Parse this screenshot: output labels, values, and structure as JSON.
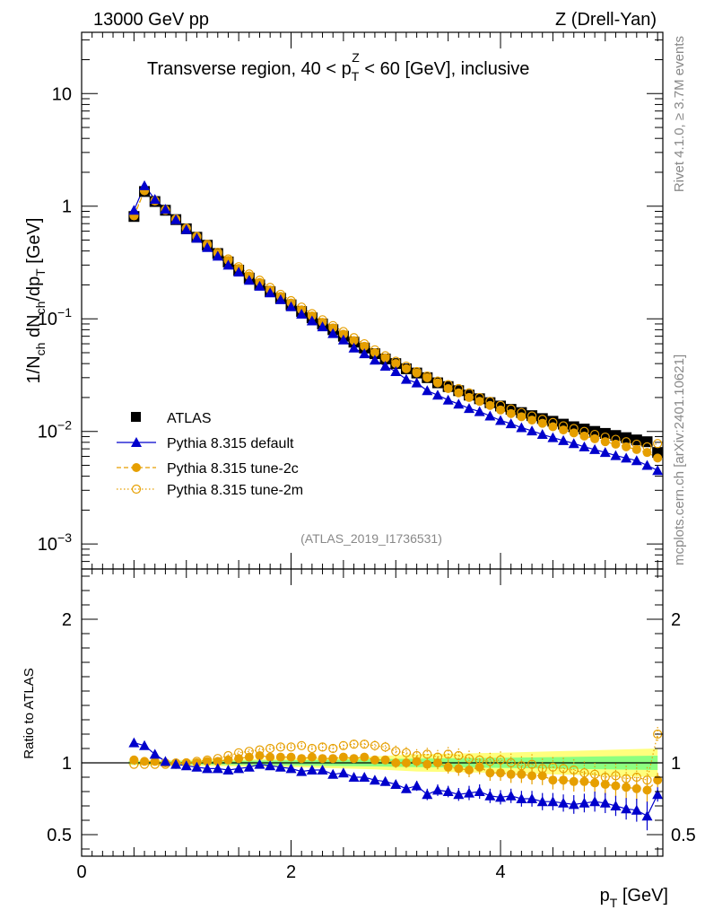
{
  "header": {
    "left": "13000 GeV pp",
    "right": "Z (Drell-Yan)"
  },
  "side_text": {
    "top": "Rivet 4.1.0, ≥ 3.7M events",
    "bottom": "mcplots.cern.ch [arXiv:2401.10621]"
  },
  "analysis_id": "(ATLAS_2019_I1736531)",
  "colors": {
    "data": "#000000",
    "default": "#0000cc",
    "tune2c": "#e69f00",
    "tune2m": "#e69f00",
    "band_inner": "#7fff7f",
    "band_outer": "#ffff66"
  },
  "chart_data": [
    {
      "type": "scatter",
      "panel": "main",
      "title_parts": {
        "prefix": "Transverse region, 40 < p",
        "sub": "T",
        "sup": "Z",
        "suffix": " < 60 [GeV], inclusive"
      },
      "ylabel_parts": {
        "a": "1/N",
        "b": "ch",
        "c": " dN",
        "d": "ch",
        "e": "/dp",
        "f": "T",
        "g": " [GeV]"
      },
      "yscale": "log",
      "ylim": [
        0.0006,
        35
      ],
      "xlim": [
        0,
        5.55
      ],
      "yticks": [
        {
          "value": 0.001,
          "base": "10",
          "exp": "−3"
        },
        {
          "value": 0.01,
          "base": "10",
          "exp": "−2"
        },
        {
          "value": 0.1,
          "base": "10",
          "exp": "−1"
        },
        {
          "value": 1,
          "base": "1",
          "exp": ""
        },
        {
          "value": 10,
          "base": "10",
          "exp": ""
        }
      ],
      "legend_position": "lower-left",
      "x": [
        0.5,
        0.6,
        0.7,
        0.8,
        0.9,
        1.0,
        1.1,
        1.2,
        1.3,
        1.4,
        1.5,
        1.6,
        1.7,
        1.8,
        1.9,
        2.0,
        2.1,
        2.2,
        2.3,
        2.4,
        2.5,
        2.6,
        2.7,
        2.8,
        2.9,
        3.0,
        3.1,
        3.2,
        3.3,
        3.4,
        3.5,
        3.6,
        3.7,
        3.8,
        3.9,
        4.0,
        4.1,
        4.2,
        4.3,
        4.4,
        4.5,
        4.6,
        4.7,
        4.8,
        4.9,
        5.0,
        5.1,
        5.2,
        5.3,
        5.4,
        5.5
      ],
      "series": [
        {
          "name": "ATLAS",
          "marker": "square",
          "values": [
            0.81,
            1.35,
            1.1,
            0.92,
            0.76,
            0.63,
            0.53,
            0.45,
            0.38,
            0.32,
            0.27,
            0.23,
            0.2,
            0.174,
            0.152,
            0.133,
            0.116,
            0.102,
            0.09,
            0.08,
            0.07,
            0.062,
            0.055,
            0.049,
            0.044,
            0.04,
            0.036,
            0.033,
            0.03,
            0.027,
            0.025,
            0.023,
            0.021,
            0.0195,
            0.018,
            0.0168,
            0.0157,
            0.0147,
            0.0138,
            0.013,
            0.0123,
            0.0116,
            0.011,
            0.0105,
            0.01,
            0.0096,
            0.0092,
            0.0088,
            0.0084,
            0.0081,
            0.0065
          ]
        },
        {
          "name": "Pythia 8.315 default",
          "marker": "triangle",
          "line": "solid",
          "values": [
            0.92,
            1.52,
            1.15,
            0.94,
            0.76,
            0.62,
            0.52,
            0.43,
            0.36,
            0.3,
            0.26,
            0.22,
            0.195,
            0.17,
            0.148,
            0.128,
            0.11,
            0.096,
            0.085,
            0.074,
            0.065,
            0.055,
            0.049,
            0.043,
            0.038,
            0.034,
            0.029,
            0.027,
            0.023,
            0.021,
            0.019,
            0.0175,
            0.016,
            0.015,
            0.0137,
            0.0125,
            0.0117,
            0.0108,
            0.0101,
            0.0094,
            0.0088,
            0.0083,
            0.0078,
            0.0073,
            0.0069,
            0.0065,
            0.0061,
            0.0058,
            0.0055,
            0.005,
            0.0045
          ]
        },
        {
          "name": "Pythia 8.315 tune-2c",
          "marker": "circle",
          "line": "dashed",
          "values": [
            0.82,
            1.37,
            1.11,
            0.92,
            0.76,
            0.63,
            0.53,
            0.45,
            0.38,
            0.33,
            0.28,
            0.24,
            0.21,
            0.18,
            0.158,
            0.138,
            0.12,
            0.106,
            0.093,
            0.083,
            0.073,
            0.064,
            0.057,
            0.05,
            0.045,
            0.04,
            0.036,
            0.033,
            0.03,
            0.027,
            0.024,
            0.022,
            0.02,
            0.0185,
            0.017,
            0.0155,
            0.0144,
            0.0135,
            0.0126,
            0.0118,
            0.011,
            0.0103,
            0.0097,
            0.0091,
            0.0086,
            0.0081,
            0.0077,
            0.0073,
            0.0069,
            0.0065,
            0.0058
          ]
        },
        {
          "name": "Pythia 8.315 tune-2m",
          "marker": "open-circle",
          "line": "dotted",
          "values": [
            0.83,
            1.38,
            1.12,
            0.93,
            0.77,
            0.64,
            0.54,
            0.46,
            0.39,
            0.34,
            0.29,
            0.25,
            0.22,
            0.19,
            0.165,
            0.145,
            0.127,
            0.111,
            0.098,
            0.087,
            0.077,
            0.068,
            0.06,
            0.053,
            0.047,
            0.042,
            0.038,
            0.034,
            0.031,
            0.028,
            0.026,
            0.024,
            0.022,
            0.02,
            0.0185,
            0.017,
            0.0158,
            0.0147,
            0.0137,
            0.0128,
            0.012,
            0.0112,
            0.0106,
            0.01,
            0.0094,
            0.0089,
            0.0085,
            0.0081,
            0.0077,
            0.0073,
            0.0078
          ]
        }
      ]
    },
    {
      "type": "scatter",
      "panel": "ratio",
      "ylabel": "Ratio to ATLAS",
      "xlabel_parts": {
        "a": "p",
        "b": "T",
        "c": " [GeV]"
      },
      "ylim": [
        0.35,
        2.35
      ],
      "xlim": [
        0,
        5.55
      ],
      "xticks": [
        {
          "value": 0,
          "label": "0"
        },
        {
          "value": 2,
          "label": "2"
        },
        {
          "value": 4,
          "label": "4"
        }
      ],
      "yticks": [
        {
          "value": 0.5,
          "label": "0.5"
        },
        {
          "value": 1,
          "label": "1"
        },
        {
          "value": 2,
          "label": "2"
        }
      ],
      "band": {
        "x": [
          0.45,
          1.0,
          2.0,
          2.8,
          3.2,
          4.0,
          5.0,
          5.5
        ],
        "inner": [
          0.01,
          0.012,
          0.018,
          0.025,
          0.03,
          0.035,
          0.045,
          0.05
        ],
        "outer": [
          0.015,
          0.02,
          0.03,
          0.045,
          0.06,
          0.07,
          0.09,
          0.1
        ]
      },
      "x": [
        0.5,
        0.6,
        0.7,
        0.8,
        0.9,
        1.0,
        1.1,
        1.2,
        1.3,
        1.4,
        1.5,
        1.6,
        1.7,
        1.8,
        1.9,
        2.0,
        2.1,
        2.2,
        2.3,
        2.4,
        2.5,
        2.6,
        2.7,
        2.8,
        2.9,
        3.0,
        3.1,
        3.2,
        3.3,
        3.4,
        3.5,
        3.6,
        3.7,
        3.8,
        3.9,
        4.0,
        4.1,
        4.2,
        4.3,
        4.4,
        4.5,
        4.6,
        4.7,
        4.8,
        4.9,
        5.0,
        5.1,
        5.2,
        5.3,
        5.4,
        5.5
      ],
      "series": [
        {
          "name": "Pythia 8.315 default",
          "values": [
            1.14,
            1.12,
            1.06,
            1.01,
            0.99,
            0.98,
            0.97,
            0.96,
            0.96,
            0.95,
            0.96,
            0.97,
            0.99,
            0.98,
            0.97,
            0.96,
            0.94,
            0.95,
            0.95,
            0.92,
            0.93,
            0.9,
            0.9,
            0.88,
            0.87,
            0.85,
            0.82,
            0.84,
            0.78,
            0.81,
            0.8,
            0.78,
            0.79,
            0.8,
            0.77,
            0.76,
            0.77,
            0.75,
            0.75,
            0.73,
            0.73,
            0.72,
            0.71,
            0.72,
            0.73,
            0.72,
            0.7,
            0.68,
            0.67,
            0.63,
            0.78
          ],
          "errors": [
            0.01,
            0.01,
            0.01,
            0.01,
            0.01,
            0.01,
            0.01,
            0.01,
            0.01,
            0.01,
            0.01,
            0.01,
            0.01,
            0.01,
            0.01,
            0.01,
            0.015,
            0.015,
            0.015,
            0.02,
            0.02,
            0.02,
            0.02,
            0.03,
            0.03,
            0.03,
            0.03,
            0.035,
            0.04,
            0.04,
            0.04,
            0.045,
            0.05,
            0.05,
            0.05,
            0.05,
            0.05,
            0.055,
            0.055,
            0.06,
            0.06,
            0.06,
            0.065,
            0.065,
            0.07,
            0.07,
            0.07,
            0.075,
            0.08,
            0.1,
            0.05
          ]
        },
        {
          "name": "Pythia 8.315 tune-2c",
          "values": [
            1.02,
            1.01,
            1.01,
            1.0,
            1.0,
            1.0,
            1.0,
            1.01,
            1.01,
            1.02,
            1.03,
            1.04,
            1.05,
            1.04,
            1.04,
            1.04,
            1.03,
            1.04,
            1.03,
            1.03,
            1.04,
            1.03,
            1.04,
            1.02,
            1.02,
            1.0,
            1.0,
            1.01,
            0.99,
            1.0,
            0.97,
            0.96,
            0.95,
            0.97,
            0.93,
            0.93,
            0.92,
            0.92,
            0.91,
            0.91,
            0.88,
            0.88,
            0.87,
            0.87,
            0.86,
            0.85,
            0.84,
            0.83,
            0.82,
            0.81,
            0.88
          ],
          "errors": [
            0.01,
            0.01,
            0.01,
            0.01,
            0.01,
            0.01,
            0.01,
            0.01,
            0.01,
            0.01,
            0.01,
            0.01,
            0.01,
            0.015,
            0.015,
            0.015,
            0.015,
            0.02,
            0.02,
            0.02,
            0.02,
            0.025,
            0.025,
            0.03,
            0.03,
            0.035,
            0.035,
            0.04,
            0.04,
            0.045,
            0.045,
            0.05,
            0.05,
            0.05,
            0.055,
            0.055,
            0.06,
            0.06,
            0.06,
            0.065,
            0.065,
            0.07,
            0.07,
            0.07,
            0.075,
            0.075,
            0.08,
            0.08,
            0.08,
            0.085,
            0.05
          ]
        },
        {
          "name": "Pythia 8.315 tune-2m",
          "values": [
            0.99,
            0.99,
            0.99,
            0.99,
            0.99,
            1.0,
            1.01,
            1.02,
            1.03,
            1.05,
            1.07,
            1.08,
            1.09,
            1.1,
            1.11,
            1.11,
            1.12,
            1.1,
            1.11,
            1.1,
            1.12,
            1.13,
            1.13,
            1.12,
            1.11,
            1.08,
            1.07,
            1.05,
            1.06,
            1.04,
            1.06,
            1.05,
            1.03,
            1.02,
            1.01,
            1.02,
            1.0,
            0.98,
            0.99,
            0.96,
            0.97,
            0.96,
            0.95,
            0.93,
            0.92,
            0.9,
            0.91,
            0.89,
            0.9,
            0.88,
            1.2
          ],
          "errors": [
            0.01,
            0.01,
            0.01,
            0.01,
            0.01,
            0.01,
            0.01,
            0.01,
            0.01,
            0.01,
            0.015,
            0.015,
            0.015,
            0.02,
            0.02,
            0.02,
            0.02,
            0.02,
            0.025,
            0.025,
            0.03,
            0.03,
            0.03,
            0.035,
            0.035,
            0.04,
            0.04,
            0.045,
            0.045,
            0.05,
            0.05,
            0.05,
            0.055,
            0.055,
            0.06,
            0.06,
            0.065,
            0.065,
            0.07,
            0.07,
            0.07,
            0.075,
            0.075,
            0.08,
            0.08,
            0.085,
            0.085,
            0.09,
            0.09,
            0.09,
            0.05
          ]
        }
      ]
    }
  ]
}
